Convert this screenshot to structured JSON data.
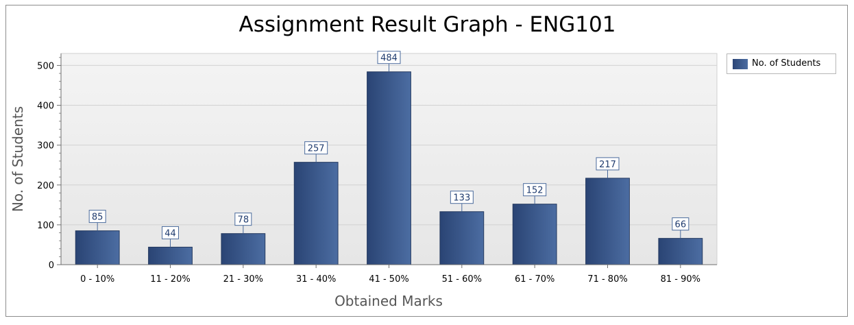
{
  "chart_data": {
    "type": "bar",
    "title": "Assignment Result Graph - ENG101",
    "xlabel": "Obtained Marks",
    "ylabel": "No. of Students",
    "categories": [
      "0 - 10%",
      "11 - 20%",
      "21 - 30%",
      "31 - 40%",
      "41 - 50%",
      "51 - 60%",
      "61 - 70%",
      "71 - 80%",
      "81 - 90%"
    ],
    "series": [
      {
        "name": "No. of Students",
        "values": [
          85,
          44,
          78,
          257,
          484,
          133,
          152,
          217,
          66
        ]
      }
    ],
    "ylim": [
      0,
      530
    ],
    "yticks": [
      0,
      100,
      200,
      300,
      400,
      500
    ],
    "grid": true,
    "legend_position": "top-right",
    "colors": {
      "bar_dark": "#2c4677",
      "bar_light": "#4b6ca0",
      "plot_bg": "#ececec",
      "label_border": "#4a6a9c"
    }
  }
}
